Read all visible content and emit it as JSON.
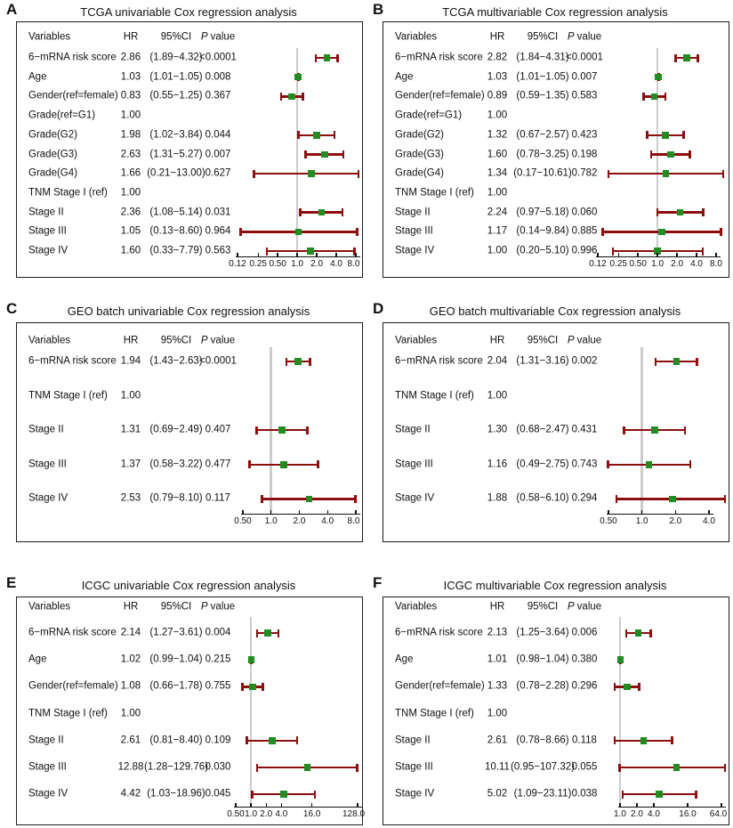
{
  "colors": {
    "ci_bar": "#8E0E0E",
    "point_marker": "#228B22",
    "reference_line": "#CCCCCC",
    "axis": "#111111",
    "panel_border": "#1C1C1C",
    "text": "#111111"
  },
  "chart_data": [
    {
      "type": "scatter",
      "subtype": "forest-plot",
      "panel_label": "A",
      "title": "TCGA univariable Cox regression analysis",
      "columns": [
        "Variables",
        "HR",
        "95%CI",
        "P value"
      ],
      "x_scale": "log",
      "ref_line": 1.0,
      "x_ticks": [
        0.12,
        0.25,
        0.5,
        1.0,
        2.0,
        4.0,
        8.0
      ],
      "x_tick_labels": [
        "0.12",
        "0.25",
        "0.50",
        "1.0",
        "2.0",
        "4.0",
        "8.0"
      ],
      "rows": [
        {
          "variable": "6−mRNA risk score",
          "hr_text": "2.86",
          "hr": 2.86,
          "ci_text": "(1.89−4.32)",
          "ci_low": 1.89,
          "ci_high": 4.32,
          "p_text": "<0.0001"
        },
        {
          "variable": "Age",
          "hr_text": "1.03",
          "hr": 1.03,
          "ci_text": "(1.01−1.05)",
          "ci_low": 1.01,
          "ci_high": 1.05,
          "p_text": "0.008"
        },
        {
          "variable": "Gender(ref=female)",
          "hr_text": "0.83",
          "hr": 0.83,
          "ci_text": "(0.55−1.25)",
          "ci_low": 0.55,
          "ci_high": 1.25,
          "p_text": "0.367"
        },
        {
          "variable": "Grade(ref=G1)",
          "hr_text": "1.00",
          "reference": true
        },
        {
          "variable": "Grade(G2)",
          "hr_text": "1.98",
          "hr": 1.98,
          "ci_text": "(1.02−3.84)",
          "ci_low": 1.02,
          "ci_high": 3.84,
          "p_text": "0.044"
        },
        {
          "variable": "Grade(G3)",
          "hr_text": "2.63",
          "hr": 2.63,
          "ci_text": "(1.31−5.27)",
          "ci_low": 1.31,
          "ci_high": 5.27,
          "p_text": "0.007"
        },
        {
          "variable": "Grade(G4)",
          "hr_text": "1.66",
          "hr": 1.66,
          "ci_text": "(0.21−13.00)",
          "ci_low": 0.21,
          "ci_high": 13.0,
          "p_text": "0.627"
        },
        {
          "variable": "TNM Stage I (ref)",
          "hr_text": "1.00",
          "reference": true
        },
        {
          "variable": "Stage II",
          "hr_text": "2.36",
          "hr": 2.36,
          "ci_text": "(1.08−5.14)",
          "ci_low": 1.08,
          "ci_high": 5.14,
          "p_text": "0.031"
        },
        {
          "variable": "Stage III",
          "hr_text": "1.05",
          "hr": 1.05,
          "ci_text": "(0.13−8.60)",
          "ci_low": 0.13,
          "ci_high": 8.6,
          "p_text": "0.964"
        },
        {
          "variable": "Stage IV",
          "hr_text": "1.60",
          "hr": 1.6,
          "ci_text": "(0.33−7.79)",
          "ci_low": 0.33,
          "ci_high": 7.79,
          "p_text": "0.563"
        }
      ]
    },
    {
      "type": "scatter",
      "subtype": "forest-plot",
      "panel_label": "B",
      "title": "TCGA multivariable Cox regression analysis",
      "columns": [
        "Variables",
        "HR",
        "95%CI",
        "P value"
      ],
      "x_scale": "log",
      "ref_line": 1.0,
      "x_ticks": [
        0.12,
        0.25,
        0.5,
        1.0,
        2.0,
        4.0,
        8.0
      ],
      "x_tick_labels": [
        "0.12",
        "0.25",
        "0.50",
        "1.0",
        "2.0",
        "4.0",
        "8.0"
      ],
      "rows": [
        {
          "variable": "6−mRNA risk score",
          "hr_text": "2.82",
          "hr": 2.82,
          "ci_text": "(1.84−4.31)",
          "ci_low": 1.84,
          "ci_high": 4.31,
          "p_text": "<0.0001"
        },
        {
          "variable": "Age",
          "hr_text": "1.03",
          "hr": 1.03,
          "ci_text": "(1.01−1.05)",
          "ci_low": 1.01,
          "ci_high": 1.05,
          "p_text": "0.007"
        },
        {
          "variable": "Gender(ref=female)",
          "hr_text": "0.89",
          "hr": 0.89,
          "ci_text": "(0.59−1.35)",
          "ci_low": 0.59,
          "ci_high": 1.35,
          "p_text": "0.583"
        },
        {
          "variable": "Grade(ref=G1)",
          "hr_text": "1.00",
          "reference": true
        },
        {
          "variable": "Grade(G2)",
          "hr_text": "1.32",
          "hr": 1.32,
          "ci_text": "(0.67−2.57)",
          "ci_low": 0.67,
          "ci_high": 2.57,
          "p_text": "0.423"
        },
        {
          "variable": "Grade(G3)",
          "hr_text": "1.60",
          "hr": 1.6,
          "ci_text": "(0.78−3.25)",
          "ci_low": 0.78,
          "ci_high": 3.25,
          "p_text": "0.198"
        },
        {
          "variable": "Grade(G4)",
          "hr_text": "1.34",
          "hr": 1.34,
          "ci_text": "(0.17−10.61)",
          "ci_low": 0.17,
          "ci_high": 10.61,
          "p_text": "0.782"
        },
        {
          "variable": "TNM Stage I (ref)",
          "hr_text": "1.00",
          "reference": true
        },
        {
          "variable": "Stage II",
          "hr_text": "2.24",
          "hr": 2.24,
          "ci_text": "(0.97−5.18)",
          "ci_low": 0.97,
          "ci_high": 5.18,
          "p_text": "0.060"
        },
        {
          "variable": "Stage III",
          "hr_text": "1.17",
          "hr": 1.17,
          "ci_text": "(0.14−9.84)",
          "ci_low": 0.14,
          "ci_high": 9.84,
          "p_text": "0.885"
        },
        {
          "variable": "Stage IV",
          "hr_text": "1.00",
          "hr": 1.0,
          "ci_text": "(0.20−5.10)",
          "ci_low": 0.2,
          "ci_high": 5.1,
          "p_text": "0.996"
        }
      ]
    },
    {
      "type": "scatter",
      "subtype": "forest-plot",
      "panel_label": "C",
      "title": "GEO batch univariable Cox regression analysis",
      "columns": [
        "Variables",
        "HR",
        "95%CI",
        "P value"
      ],
      "x_scale": "log",
      "ref_line": 1.0,
      "x_ticks": [
        0.5,
        1.0,
        2.0,
        4.0,
        8.0
      ],
      "x_tick_labels": [
        "0.50",
        "1.0",
        "2.0",
        "4.0",
        "8.0"
      ],
      "rows": [
        {
          "variable": "6−mRNA risk score",
          "hr_text": "1.94",
          "hr": 1.94,
          "ci_text": "(1.43−2.63)",
          "ci_low": 1.43,
          "ci_high": 2.63,
          "p_text": "<0.0001"
        },
        {
          "variable": "TNM Stage I (ref)",
          "hr_text": "1.00",
          "reference": true
        },
        {
          "variable": "Stage II",
          "hr_text": "1.31",
          "hr": 1.31,
          "ci_text": "(0.69−2.49)",
          "ci_low": 0.69,
          "ci_high": 2.49,
          "p_text": "0.407"
        },
        {
          "variable": "Stage III",
          "hr_text": "1.37",
          "hr": 1.37,
          "ci_text": "(0.58−3.22)",
          "ci_low": 0.58,
          "ci_high": 3.22,
          "p_text": "0.477"
        },
        {
          "variable": "Stage IV",
          "hr_text": "2.53",
          "hr": 2.53,
          "ci_text": "(0.79−8.10)",
          "ci_low": 0.79,
          "ci_high": 8.1,
          "p_text": "0.117"
        }
      ]
    },
    {
      "type": "scatter",
      "subtype": "forest-plot",
      "panel_label": "D",
      "title": "GEO batch multivariable Cox regression analysis",
      "columns": [
        "Variables",
        "HR",
        "95%CI",
        "P value"
      ],
      "x_scale": "log",
      "ref_line": 1.0,
      "x_ticks": [
        0.5,
        1.0,
        2.0,
        4.0
      ],
      "x_tick_labels": [
        "0.50",
        "1.0",
        "2.0",
        "4.0"
      ],
      "rows": [
        {
          "variable": "6−mRNA risk score",
          "hr_text": "2.04",
          "hr": 2.04,
          "ci_text": "(1.31−3.16)",
          "ci_low": 1.31,
          "ci_high": 3.16,
          "p_text": "0.002"
        },
        {
          "variable": "TNM Stage I (ref)",
          "hr_text": "1.00",
          "reference": true
        },
        {
          "variable": "Stage II",
          "hr_text": "1.30",
          "hr": 1.3,
          "ci_text": "(0.68−2.47)",
          "ci_low": 0.68,
          "ci_high": 2.47,
          "p_text": "0.431"
        },
        {
          "variable": "Stage III",
          "hr_text": "1.16",
          "hr": 1.16,
          "ci_text": "(0.49−2.75)",
          "ci_low": 0.49,
          "ci_high": 2.75,
          "p_text": "0.743"
        },
        {
          "variable": "Stage IV",
          "hr_text": "1.88",
          "hr": 1.88,
          "ci_text": "(0.58−6.10)",
          "ci_low": 0.58,
          "ci_high": 6.1,
          "p_text": "0.294"
        }
      ]
    },
    {
      "type": "scatter",
      "subtype": "forest-plot",
      "panel_label": "E",
      "title": "ICGC univariable Cox regression analysis",
      "columns": [
        "Variables",
        "HR",
        "95%CI",
        "P value"
      ],
      "x_scale": "log",
      "ref_line": 1.0,
      "x_ticks": [
        0.5,
        1.0,
        2.0,
        4.0,
        16.0,
        128.0
      ],
      "x_tick_labels": [
        "0.50",
        "1.0",
        "2.0",
        "4.0",
        "16.0",
        "128.0"
      ],
      "rows": [
        {
          "variable": "6−mRNA risk score",
          "hr_text": "2.14",
          "hr": 2.14,
          "ci_text": "(1.27−3.61)",
          "ci_low": 1.27,
          "ci_high": 3.61,
          "p_text": "0.004"
        },
        {
          "variable": "Age",
          "hr_text": "1.02",
          "hr": 1.02,
          "ci_text": "(0.99−1.04)",
          "ci_low": 0.99,
          "ci_high": 1.04,
          "p_text": "0.215"
        },
        {
          "variable": "Gender(ref=female)",
          "hr_text": "1.08",
          "hr": 1.08,
          "ci_text": "(0.66−1.78)",
          "ci_low": 0.66,
          "ci_high": 1.78,
          "p_text": "0.755"
        },
        {
          "variable": "TNM Stage I (ref)",
          "hr_text": "1.00",
          "reference": true
        },
        {
          "variable": "Stage II",
          "hr_text": "2.61",
          "hr": 2.61,
          "ci_text": "(0.81−8.40)",
          "ci_low": 0.81,
          "ci_high": 8.4,
          "p_text": "0.109"
        },
        {
          "variable": "Stage III",
          "hr_text": "12.88",
          "hr": 12.88,
          "ci_text": "(1.28−129.76)",
          "ci_low": 1.28,
          "ci_high": 129.76,
          "p_text": "0.030"
        },
        {
          "variable": "Stage IV",
          "hr_text": "4.42",
          "hr": 4.42,
          "ci_text": "(1.03−18.96)",
          "ci_low": 1.03,
          "ci_high": 18.96,
          "p_text": "0.045"
        }
      ]
    },
    {
      "type": "scatter",
      "subtype": "forest-plot",
      "panel_label": "F",
      "title": "ICGC multivariable Cox regression analysis",
      "columns": [
        "Variables",
        "HR",
        "95%CI",
        "P value"
      ],
      "x_scale": "log",
      "ref_line": 1.0,
      "x_ticks": [
        1.0,
        2.0,
        4.0,
        16.0,
        64.0
      ],
      "x_tick_labels": [
        "1.0",
        "2.0",
        "4.0",
        "16.0",
        "64.0"
      ],
      "rows": [
        {
          "variable": "6−mRNA risk score",
          "hr_text": "2.13",
          "hr": 2.13,
          "ci_text": "(1.25−3.64)",
          "ci_low": 1.25,
          "ci_high": 3.64,
          "p_text": "0.006"
        },
        {
          "variable": "Age",
          "hr_text": "1.01",
          "hr": 1.01,
          "ci_text": "(0.98−1.04)",
          "ci_low": 0.98,
          "ci_high": 1.04,
          "p_text": "0.380"
        },
        {
          "variable": "Gender(ref=female)",
          "hr_text": "1.33",
          "hr": 1.33,
          "ci_text": "(0.78−2.28)",
          "ci_low": 0.78,
          "ci_high": 2.28,
          "p_text": "0.296"
        },
        {
          "variable": "TNM Stage I (ref)",
          "hr_text": "1.00",
          "reference": true
        },
        {
          "variable": "Stage II",
          "hr_text": "2.61",
          "hr": 2.61,
          "ci_text": "(0.78−8.66)",
          "ci_low": 0.78,
          "ci_high": 8.66,
          "p_text": "0.118"
        },
        {
          "variable": "Stage III",
          "hr_text": "10.11",
          "hr": 10.11,
          "ci_text": "(0.95−107.32)",
          "ci_low": 0.95,
          "ci_high": 107.32,
          "p_text": "0.055"
        },
        {
          "variable": "Stage IV",
          "hr_text": "5.02",
          "hr": 5.02,
          "ci_text": "(1.09−23.11)",
          "ci_low": 1.09,
          "ci_high": 23.11,
          "p_text": "0.038"
        }
      ]
    }
  ]
}
